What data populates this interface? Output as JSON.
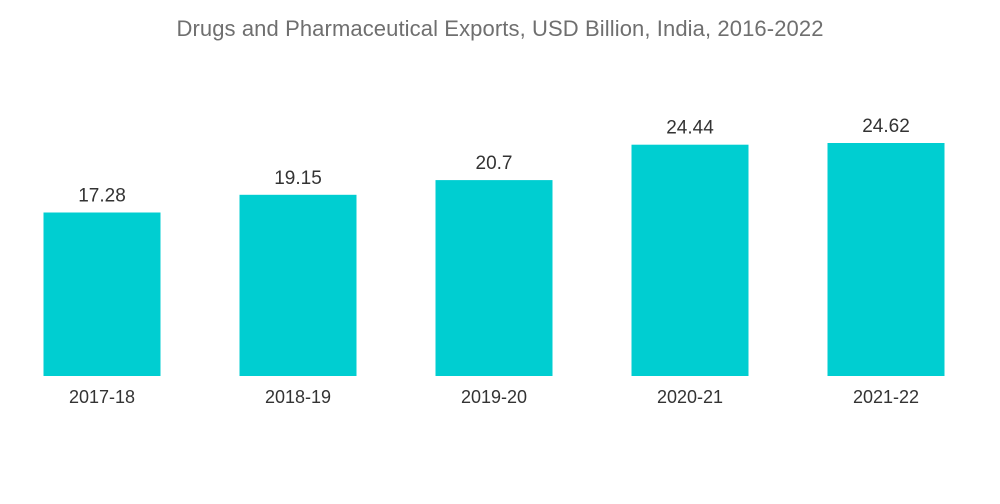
{
  "chart_data": {
    "type": "bar",
    "title": "Drugs and Pharmaceutical Exports, USD Billion, India, 2016-2022",
    "categories": [
      "2017-18",
      "2018-19",
      "2019-20",
      "2020-21",
      "2021-22"
    ],
    "values": [
      17.28,
      19.15,
      20.7,
      24.44,
      24.62
    ],
    "value_labels": [
      "17.28",
      "19.15",
      "20.7",
      "24.44",
      "24.62"
    ],
    "xlabel": "",
    "ylabel": "",
    "ylim": [
      0,
      24.62
    ],
    "grid": false,
    "legend": "none",
    "bar_color": "#00CED1"
  }
}
